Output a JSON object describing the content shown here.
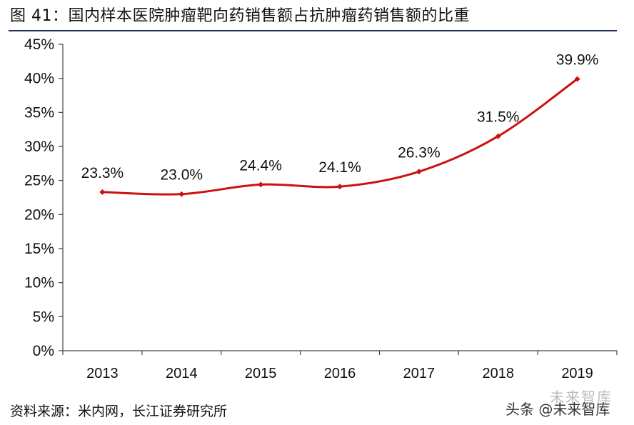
{
  "chart_data": {
    "type": "line",
    "title": "图 41：国内样本医院肿瘤靶向药销售额占抗肿瘤药销售额的比重",
    "categories": [
      "2013",
      "2014",
      "2015",
      "2016",
      "2017",
      "2018",
      "2019"
    ],
    "series": [
      {
        "values": [
          23.3,
          23.0,
          24.4,
          24.1,
          26.3,
          31.5,
          39.9
        ],
        "labels": [
          "23.3%",
          "23.0%",
          "24.4%",
          "24.1%",
          "26.3%",
          "31.5%",
          "39.9%"
        ],
        "color": "#cc1111"
      }
    ],
    "y_ticks": [
      "0%",
      "5%",
      "10%",
      "15%",
      "20%",
      "25%",
      "30%",
      "35%",
      "40%",
      "45%"
    ],
    "ylim": [
      0,
      45
    ],
    "grid": false,
    "legend": "none"
  },
  "source": "资料来源：米内网，长江证券研究所",
  "watermark": "头条 @未来智库",
  "watermark_logo": "未来智库"
}
